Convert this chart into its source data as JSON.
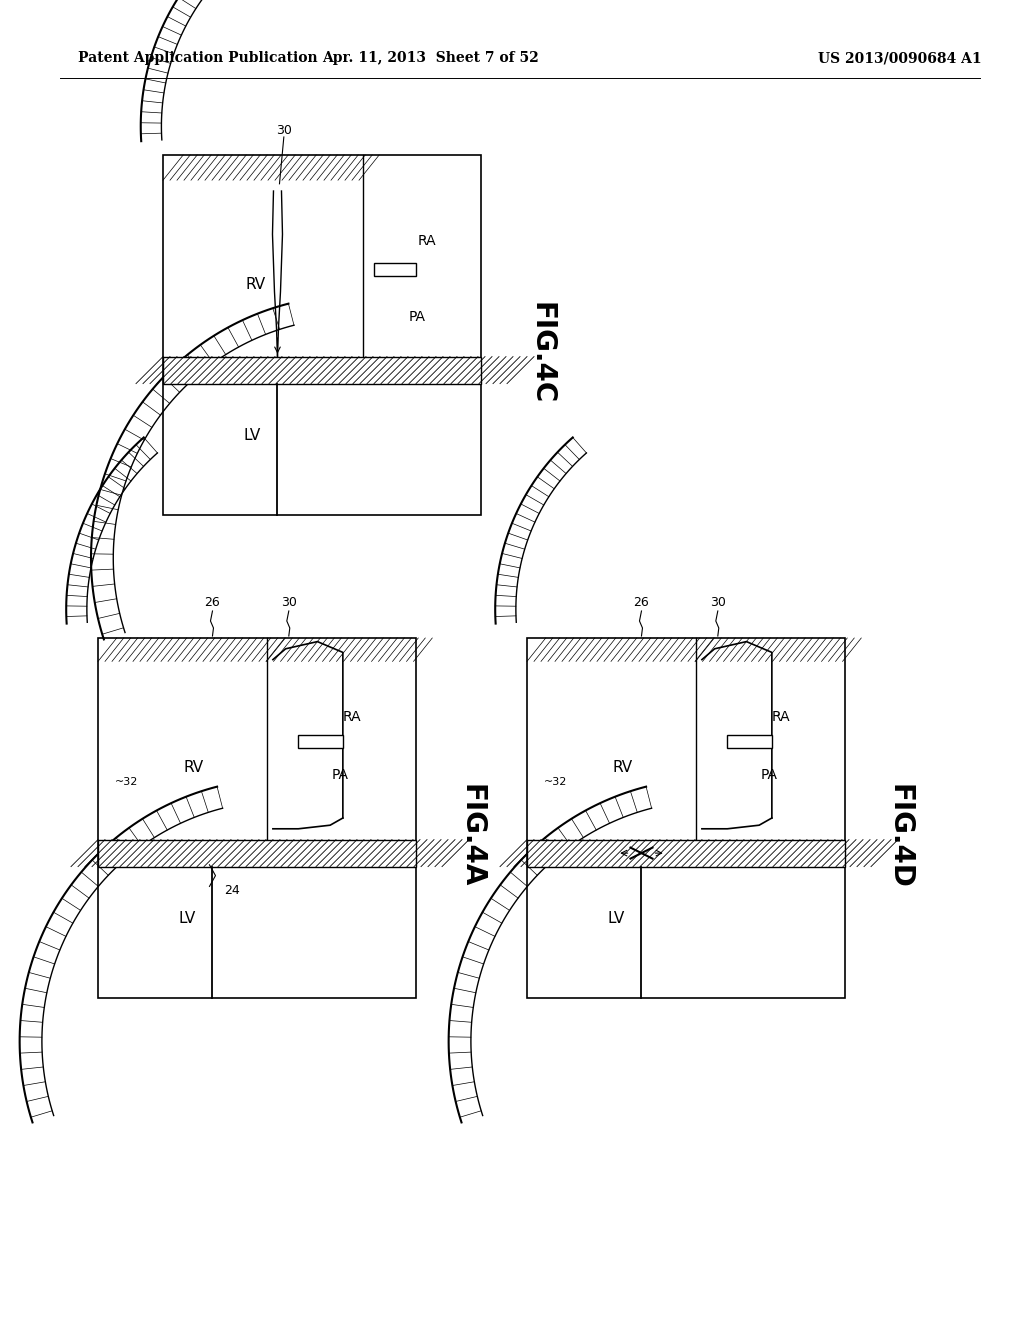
{
  "bg_color": "#ffffff",
  "header_left": "Patent Application Publication",
  "header_mid": "Apr. 11, 2013  Sheet 7 of 52",
  "header_right": "US 2013/0090684 A1"
}
